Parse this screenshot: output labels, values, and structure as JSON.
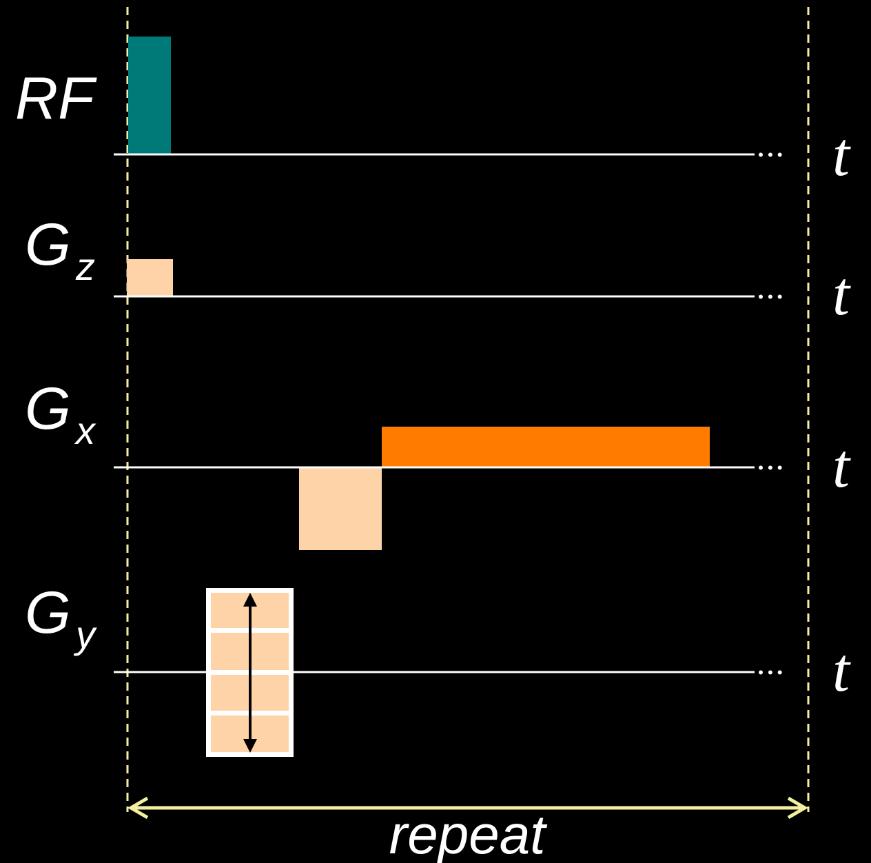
{
  "labels": {
    "rf": "RF",
    "gz_main": "G",
    "gz_sub": "z",
    "gx_main": "G",
    "gx_sub": "x",
    "gy_main": "G",
    "gy_sub": "y",
    "time": "t",
    "ellipsis": "• • •",
    "repeat": "repeat"
  },
  "colors": {
    "background": "#000000",
    "axis_line": "#ffffff",
    "rf_pulse": "#007a78",
    "gradient_light": "#ffd3a8",
    "readout": "#ff7c00",
    "boundary": "#f4f0a0",
    "repeat_arrow": "#f4f0a0",
    "phase_arrow": "#000000"
  }
}
